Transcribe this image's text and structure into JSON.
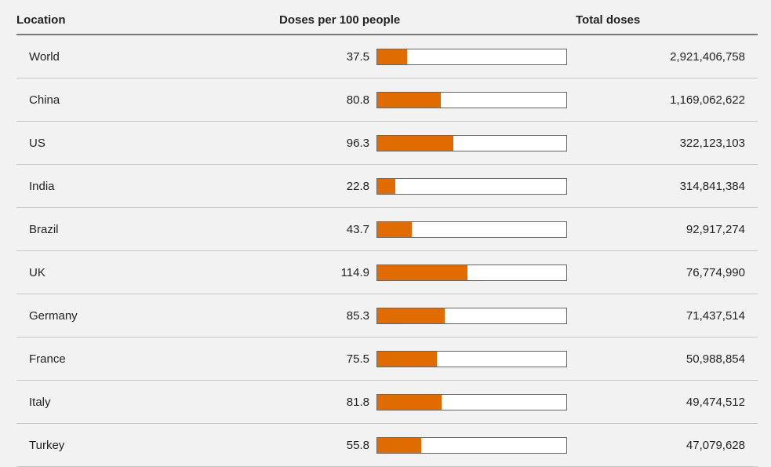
{
  "table": {
    "headers": {
      "location": "Location",
      "doses": "Doses per 100 people",
      "total": "Total doses"
    }
  },
  "chart_data": {
    "type": "bar",
    "xlim": [
      0,
      240
    ],
    "bar_color": "#e06c00",
    "rows": [
      {
        "location": "World",
        "doses_per_100": 37.5,
        "doses_label": "37.5",
        "total_doses": "2,921,406,758"
      },
      {
        "location": "China",
        "doses_per_100": 80.8,
        "doses_label": "80.8",
        "total_doses": "1,169,062,622"
      },
      {
        "location": "US",
        "doses_per_100": 96.3,
        "doses_label": "96.3",
        "total_doses": "322,123,103"
      },
      {
        "location": "India",
        "doses_per_100": 22.8,
        "doses_label": "22.8",
        "total_doses": "314,841,384"
      },
      {
        "location": "Brazil",
        "doses_per_100": 43.7,
        "doses_label": "43.7",
        "total_doses": "92,917,274"
      },
      {
        "location": "UK",
        "doses_per_100": 114.9,
        "doses_label": "114.9",
        "total_doses": "76,774,990"
      },
      {
        "location": "Germany",
        "doses_per_100": 85.3,
        "doses_label": "85.3",
        "total_doses": "71,437,514"
      },
      {
        "location": "France",
        "doses_per_100": 75.5,
        "doses_label": "75.5",
        "total_doses": "50,988,854"
      },
      {
        "location": "Italy",
        "doses_per_100": 81.8,
        "doses_label": "81.8",
        "total_doses": "49,474,512"
      },
      {
        "location": "Turkey",
        "doses_per_100": 55.8,
        "doses_label": "55.8",
        "total_doses": "47,079,628"
      }
    ]
  }
}
